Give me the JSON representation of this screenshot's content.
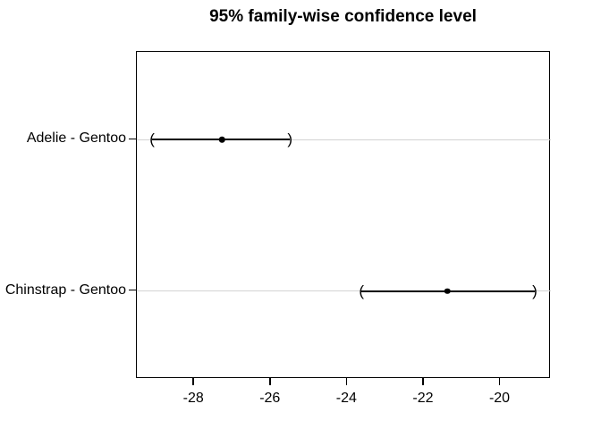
{
  "chart_data": {
    "type": "interval",
    "title": "95% family-wise confidence level",
    "xlabel": "",
    "ylabel": "",
    "xlim": [
      -29.5,
      -18.68
    ],
    "ylim": [
      0.42,
      2.58
    ],
    "grid": "horizontal-reference-lines-only",
    "legend": "none",
    "xticks": [
      {
        "value": -28,
        "label": "-28"
      },
      {
        "value": -26,
        "label": "-26"
      },
      {
        "value": -24,
        "label": "-24"
      },
      {
        "value": -22,
        "label": "-22"
      },
      {
        "value": -20,
        "label": "-20"
      }
    ],
    "rows": [
      {
        "label": "Adelie - Gentoo",
        "ypos": 2,
        "lwr": -29.1,
        "diff": -27.27,
        "upr": -25.5
      },
      {
        "label": "Chinstrap - Gentoo",
        "ypos": 1,
        "lwr": -23.63,
        "diff": -21.38,
        "upr": -19.1
      }
    ],
    "endpoint_glyphs": {
      "lower": "(",
      "upper": ")"
    },
    "colors": {
      "interval": "#000000",
      "reference_line": "#d3d3d3",
      "box": "#000000",
      "text": "#000000",
      "background": "#ffffff"
    }
  }
}
